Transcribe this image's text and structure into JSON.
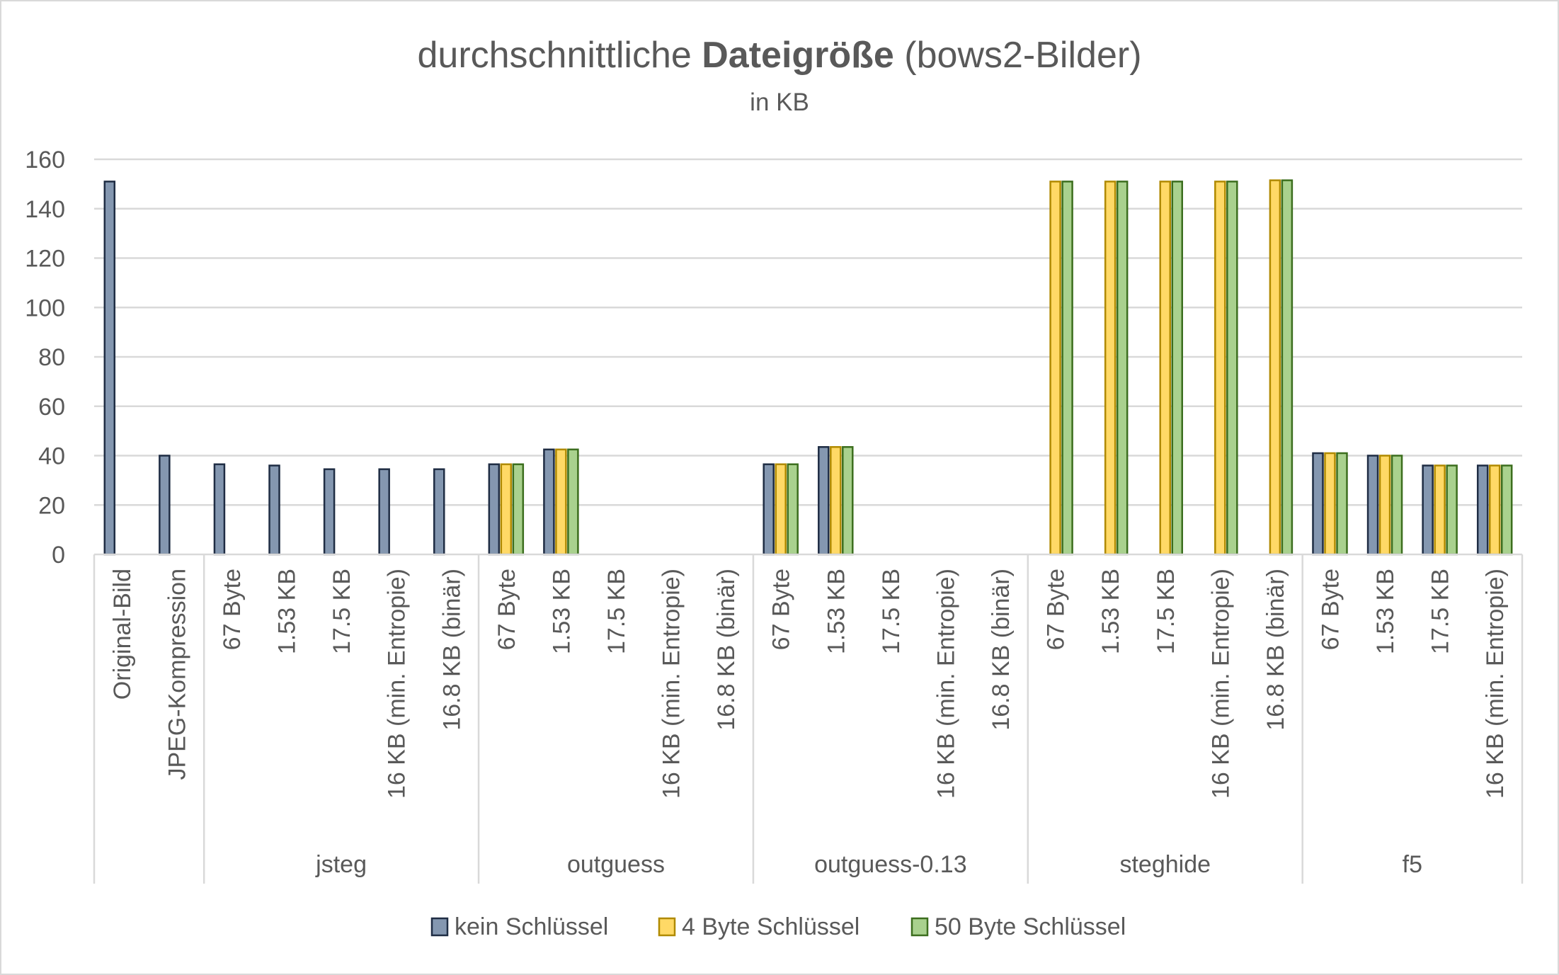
{
  "chart_data": {
    "type": "bar",
    "title_prefix": "durchschnittliche ",
    "title_bold": "Dateigröße",
    "title_suffix": " (bows2-Bilder)",
    "subtitle": "in KB",
    "xlabel": "",
    "ylabel": "",
    "ylim": [
      0,
      160
    ],
    "yticks": [
      0,
      20,
      40,
      60,
      80,
      100,
      120,
      140,
      160
    ],
    "grid": true,
    "legend_position": "bottom",
    "groups": [
      {
        "label": "",
        "size": 2
      },
      {
        "label": "jsteg",
        "size": 5
      },
      {
        "label": "outguess",
        "size": 5
      },
      {
        "label": "outguess-0.13",
        "size": 5
      },
      {
        "label": "steghide",
        "size": 5
      },
      {
        "label": "f5",
        "size": 4
      }
    ],
    "categories": [
      "Original-Bild",
      "JPEG-Kompression",
      "67 Byte",
      "1.53 KB",
      "17.5 KB",
      "16 KB (min. Entropie)",
      "16.8 KB (binär)",
      "67 Byte",
      "1.53 KB",
      "17.5 KB",
      "16 KB (min. Entropie)",
      "16.8 KB (binär)",
      "67 Byte",
      "1.53 KB",
      "17.5 KB",
      "16 KB (min. Entropie)",
      "16.8 KB (binär)",
      "67 Byte",
      "1.53 KB",
      "17.5 KB",
      "16 KB (min. Entropie)",
      "16.8 KB (binär)",
      "67 Byte",
      "1.53 KB",
      "17.5 KB",
      "16 KB (min. Entropie)"
    ],
    "series": [
      {
        "name": "kein Schlüssel",
        "color": "#8497b0",
        "border": "#1f2d44",
        "values": [
          151,
          40,
          36.5,
          36,
          34.5,
          34.5,
          34.5,
          36.5,
          42.5,
          null,
          null,
          null,
          36.5,
          43.5,
          null,
          null,
          null,
          null,
          null,
          null,
          null,
          null,
          41,
          40,
          36,
          36
        ]
      },
      {
        "name": "4 Byte Schlüssel",
        "color": "#ffd966",
        "border": "#b08a00",
        "values": [
          null,
          null,
          null,
          null,
          null,
          null,
          null,
          36.5,
          42.5,
          null,
          null,
          null,
          36.5,
          43.5,
          null,
          null,
          null,
          151,
          151,
          151,
          151,
          151.5,
          41,
          40,
          36,
          36
        ]
      },
      {
        "name": "50 Byte Schlüssel",
        "color": "#a9d18e",
        "border": "#3c6e1e",
        "values": [
          null,
          null,
          null,
          null,
          null,
          null,
          null,
          36.5,
          42.5,
          null,
          null,
          null,
          36.5,
          43.5,
          null,
          null,
          null,
          151,
          151,
          151,
          151,
          151.5,
          41,
          40,
          36,
          36
        ]
      }
    ]
  }
}
